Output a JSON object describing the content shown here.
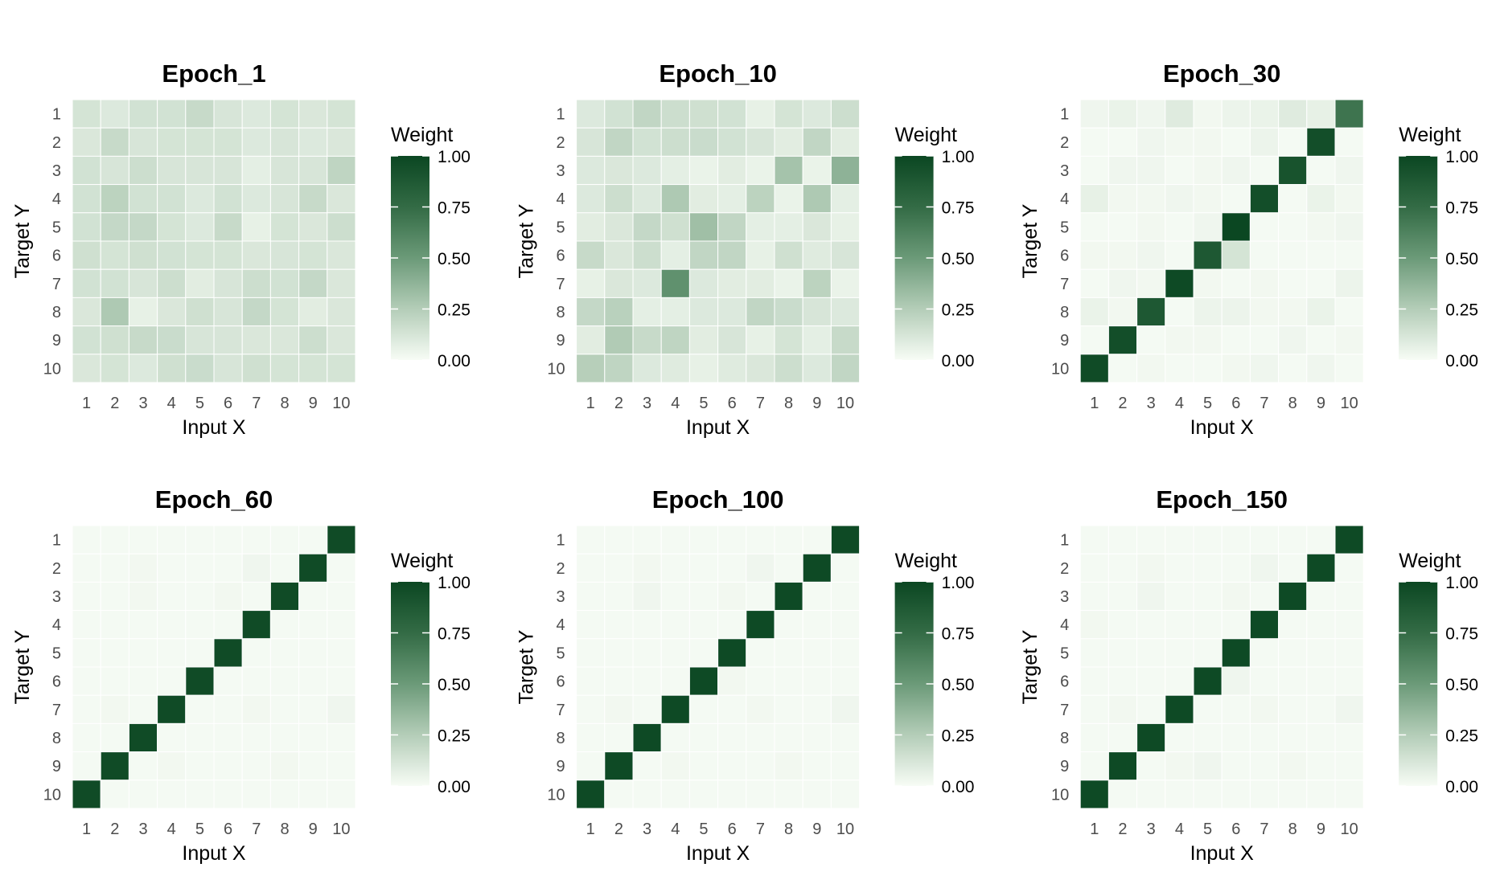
{
  "chart_data": [
    {
      "type": "heatmap",
      "title": "Epoch_1",
      "xlabel": "Input X",
      "ylabel": "Target Y",
      "legend_title": "Weight",
      "x": [
        1,
        2,
        3,
        4,
        5,
        6,
        7,
        8,
        9,
        10
      ],
      "y": [
        1,
        2,
        3,
        4,
        5,
        6,
        7,
        8,
        9,
        10
      ],
      "values": [
        [
          0.13,
          0.1,
          0.14,
          0.14,
          0.18,
          0.12,
          0.1,
          0.13,
          0.11,
          0.13
        ],
        [
          0.11,
          0.18,
          0.12,
          0.13,
          0.13,
          0.13,
          0.1,
          0.12,
          0.1,
          0.11
        ],
        [
          0.14,
          0.12,
          0.16,
          0.12,
          0.12,
          0.12,
          0.07,
          0.12,
          0.12,
          0.21
        ],
        [
          0.14,
          0.22,
          0.14,
          0.14,
          0.1,
          0.14,
          0.1,
          0.12,
          0.18,
          0.11
        ],
        [
          0.14,
          0.19,
          0.19,
          0.13,
          0.1,
          0.18,
          0.06,
          0.13,
          0.11,
          0.16
        ],
        [
          0.15,
          0.13,
          0.15,
          0.14,
          0.13,
          0.13,
          0.11,
          0.12,
          0.13,
          0.11
        ],
        [
          0.14,
          0.14,
          0.12,
          0.16,
          0.08,
          0.12,
          0.16,
          0.14,
          0.19,
          0.11
        ],
        [
          0.11,
          0.27,
          0.06,
          0.11,
          0.15,
          0.12,
          0.19,
          0.13,
          0.08,
          0.11
        ],
        [
          0.14,
          0.15,
          0.18,
          0.17,
          0.12,
          0.12,
          0.11,
          0.11,
          0.16,
          0.11
        ],
        [
          0.11,
          0.13,
          0.1,
          0.15,
          0.17,
          0.12,
          0.15,
          0.13,
          0.13,
          0.13
        ]
      ]
    },
    {
      "type": "heatmap",
      "title": "Epoch_10",
      "xlabel": "Input X",
      "ylabel": "Target Y",
      "legend_title": "Weight",
      "x": [
        1,
        2,
        3,
        4,
        5,
        6,
        7,
        8,
        9,
        10
      ],
      "y": [
        1,
        2,
        3,
        4,
        5,
        6,
        7,
        8,
        9,
        10
      ],
      "values": [
        [
          0.1,
          0.14,
          0.2,
          0.16,
          0.15,
          0.14,
          0.06,
          0.13,
          0.1,
          0.16
        ],
        [
          0.12,
          0.2,
          0.14,
          0.16,
          0.17,
          0.14,
          0.12,
          0.08,
          0.2,
          0.08
        ],
        [
          0.1,
          0.11,
          0.1,
          0.07,
          0.05,
          0.08,
          0.05,
          0.3,
          0.05,
          0.38
        ],
        [
          0.1,
          0.16,
          0.1,
          0.27,
          0.08,
          0.07,
          0.22,
          0.05,
          0.27,
          0.07
        ],
        [
          0.08,
          0.11,
          0.19,
          0.15,
          0.32,
          0.2,
          0.07,
          0.07,
          0.11,
          0.06
        ],
        [
          0.18,
          0.11,
          0.16,
          0.07,
          0.2,
          0.2,
          0.06,
          0.15,
          0.09,
          0.12
        ],
        [
          0.06,
          0.11,
          0.1,
          0.55,
          0.1,
          0.08,
          0.08,
          0.05,
          0.22,
          0.05
        ],
        [
          0.19,
          0.23,
          0.07,
          0.07,
          0.1,
          0.1,
          0.2,
          0.17,
          0.12,
          0.1
        ],
        [
          0.08,
          0.26,
          0.18,
          0.21,
          0.08,
          0.12,
          0.06,
          0.13,
          0.07,
          0.18
        ],
        [
          0.24,
          0.21,
          0.1,
          0.09,
          0.06,
          0.09,
          0.11,
          0.16,
          0.1,
          0.2
        ]
      ]
    },
    {
      "type": "heatmap",
      "title": "Epoch_30",
      "xlabel": "Input X",
      "ylabel": "Target Y",
      "legend_title": "Weight",
      "x": [
        1,
        2,
        3,
        4,
        5,
        6,
        7,
        8,
        9,
        10
      ],
      "y": [
        1,
        2,
        3,
        4,
        5,
        6,
        7,
        8,
        9,
        10
      ],
      "values": [
        [
          0.03,
          0.05,
          0.03,
          0.09,
          0.02,
          0.04,
          0.05,
          0.09,
          0.06,
          0.7
        ],
        [
          0.01,
          0.01,
          0.03,
          0.02,
          0.02,
          0.01,
          0.04,
          0.01,
          0.95,
          0.01
        ],
        [
          0.01,
          0.03,
          0.03,
          0.01,
          0.02,
          0.03,
          0.01,
          0.92,
          0.01,
          0.03
        ],
        [
          0.06,
          0.02,
          0.02,
          0.03,
          0.02,
          0.01,
          0.95,
          0.01,
          0.05,
          0.02
        ],
        [
          0.01,
          0.01,
          0.02,
          0.01,
          0.03,
          1.0,
          0.01,
          0.01,
          0.02,
          0.03
        ],
        [
          0.02,
          0.02,
          0.03,
          0.01,
          0.88,
          0.13,
          0.01,
          0.01,
          0.01,
          0.01
        ],
        [
          0.01,
          0.03,
          0.02,
          0.98,
          0.02,
          0.01,
          0.02,
          0.01,
          0.01,
          0.04
        ],
        [
          0.05,
          0.02,
          0.88,
          0.01,
          0.04,
          0.04,
          0.02,
          0.02,
          0.05,
          0.01
        ],
        [
          0.01,
          0.95,
          0.01,
          0.02,
          0.02,
          0.01,
          0.01,
          0.03,
          0.01,
          0.02
        ],
        [
          0.97,
          0.01,
          0.02,
          0.01,
          0.01,
          0.02,
          0.03,
          0.01,
          0.03,
          0.01
        ]
      ]
    },
    {
      "type": "heatmap",
      "title": "Epoch_60",
      "xlabel": "Input X",
      "ylabel": "Target Y",
      "legend_title": "Weight",
      "x": [
        1,
        2,
        3,
        4,
        5,
        6,
        7,
        8,
        9,
        10
      ],
      "y": [
        1,
        2,
        3,
        4,
        5,
        6,
        7,
        8,
        9,
        10
      ],
      "values": [
        [
          0.01,
          0.01,
          0.01,
          0.01,
          0.01,
          0.01,
          0.01,
          0.01,
          0.01,
          0.97
        ],
        [
          0.01,
          0.01,
          0.02,
          0.01,
          0.01,
          0.01,
          0.03,
          0.01,
          0.97,
          0.01
        ],
        [
          0.01,
          0.01,
          0.02,
          0.01,
          0.01,
          0.02,
          0.01,
          0.97,
          0.01,
          0.01
        ],
        [
          0.01,
          0.01,
          0.01,
          0.01,
          0.01,
          0.01,
          0.97,
          0.01,
          0.01,
          0.01
        ],
        [
          0.01,
          0.01,
          0.01,
          0.01,
          0.01,
          0.97,
          0.01,
          0.01,
          0.01,
          0.01
        ],
        [
          0.01,
          0.01,
          0.01,
          0.01,
          0.97,
          0.01,
          0.01,
          0.01,
          0.01,
          0.01
        ],
        [
          0.01,
          0.02,
          0.01,
          0.97,
          0.01,
          0.01,
          0.02,
          0.01,
          0.01,
          0.03
        ],
        [
          0.01,
          0.01,
          0.97,
          0.01,
          0.01,
          0.01,
          0.01,
          0.01,
          0.01,
          0.01
        ],
        [
          0.01,
          0.97,
          0.01,
          0.02,
          0.01,
          0.01,
          0.01,
          0.02,
          0.01,
          0.01
        ],
        [
          0.97,
          0.01,
          0.01,
          0.01,
          0.01,
          0.01,
          0.01,
          0.01,
          0.01,
          0.01
        ]
      ]
    },
    {
      "type": "heatmap",
      "title": "Epoch_100",
      "xlabel": "Input X",
      "ylabel": "Target Y",
      "legend_title": "Weight",
      "x": [
        1,
        2,
        3,
        4,
        5,
        6,
        7,
        8,
        9,
        10
      ],
      "y": [
        1,
        2,
        3,
        4,
        5,
        6,
        7,
        8,
        9,
        10
      ],
      "values": [
        [
          0.01,
          0.01,
          0.01,
          0.01,
          0.01,
          0.01,
          0.01,
          0.01,
          0.01,
          0.98
        ],
        [
          0.01,
          0.01,
          0.02,
          0.01,
          0.01,
          0.01,
          0.03,
          0.01,
          0.98,
          0.01
        ],
        [
          0.01,
          0.01,
          0.03,
          0.01,
          0.01,
          0.02,
          0.01,
          0.98,
          0.01,
          0.01
        ],
        [
          0.01,
          0.01,
          0.01,
          0.01,
          0.01,
          0.01,
          0.98,
          0.01,
          0.01,
          0.01
        ],
        [
          0.01,
          0.01,
          0.01,
          0.01,
          0.01,
          0.98,
          0.01,
          0.01,
          0.01,
          0.01
        ],
        [
          0.01,
          0.01,
          0.01,
          0.01,
          0.98,
          0.02,
          0.01,
          0.01,
          0.01,
          0.01
        ],
        [
          0.01,
          0.02,
          0.01,
          0.98,
          0.01,
          0.01,
          0.02,
          0.01,
          0.01,
          0.03
        ],
        [
          0.01,
          0.01,
          0.98,
          0.01,
          0.01,
          0.01,
          0.01,
          0.01,
          0.01,
          0.01
        ],
        [
          0.01,
          0.98,
          0.01,
          0.02,
          0.01,
          0.01,
          0.01,
          0.02,
          0.01,
          0.01
        ],
        [
          0.98,
          0.01,
          0.01,
          0.01,
          0.01,
          0.01,
          0.01,
          0.01,
          0.01,
          0.01
        ]
      ]
    },
    {
      "type": "heatmap",
      "title": "Epoch_150",
      "xlabel": "Input X",
      "ylabel": "Target Y",
      "legend_title": "Weight",
      "x": [
        1,
        2,
        3,
        4,
        5,
        6,
        7,
        8,
        9,
        10
      ],
      "y": [
        1,
        2,
        3,
        4,
        5,
        6,
        7,
        8,
        9,
        10
      ],
      "values": [
        [
          0.01,
          0.01,
          0.01,
          0.01,
          0.01,
          0.01,
          0.01,
          0.01,
          0.01,
          0.98
        ],
        [
          0.01,
          0.01,
          0.02,
          0.01,
          0.01,
          0.01,
          0.03,
          0.01,
          0.98,
          0.01
        ],
        [
          0.01,
          0.01,
          0.03,
          0.01,
          0.01,
          0.02,
          0.01,
          0.98,
          0.01,
          0.01
        ],
        [
          0.02,
          0.01,
          0.01,
          0.01,
          0.01,
          0.01,
          0.98,
          0.01,
          0.01,
          0.01
        ],
        [
          0.01,
          0.01,
          0.01,
          0.01,
          0.01,
          0.98,
          0.01,
          0.01,
          0.01,
          0.01
        ],
        [
          0.01,
          0.01,
          0.01,
          0.01,
          0.98,
          0.03,
          0.01,
          0.01,
          0.01,
          0.01
        ],
        [
          0.01,
          0.02,
          0.01,
          0.98,
          0.01,
          0.01,
          0.02,
          0.01,
          0.01,
          0.03
        ],
        [
          0.01,
          0.01,
          0.98,
          0.01,
          0.01,
          0.01,
          0.01,
          0.01,
          0.01,
          0.01
        ],
        [
          0.01,
          0.98,
          0.01,
          0.02,
          0.03,
          0.01,
          0.01,
          0.02,
          0.01,
          0.01
        ],
        [
          0.98,
          0.01,
          0.01,
          0.01,
          0.01,
          0.01,
          0.01,
          0.01,
          0.01,
          0.01
        ]
      ]
    }
  ],
  "legend": {
    "ticks": [
      "0.00",
      "0.25",
      "0.50",
      "0.75",
      "1.00"
    ],
    "range": [
      0,
      1
    ],
    "low_color": "#f7fcf5",
    "high_color": "#0b4722"
  }
}
